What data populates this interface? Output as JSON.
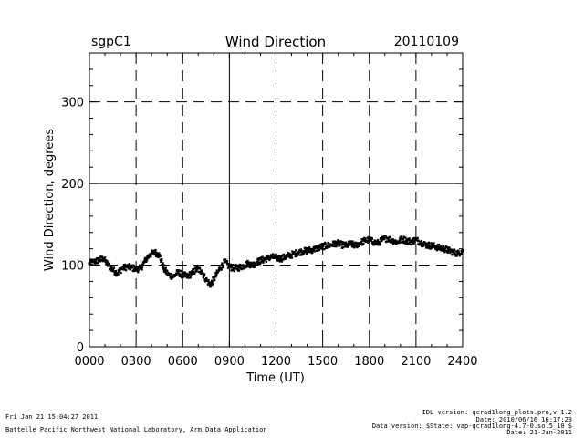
{
  "header": {
    "site": "sgpC1",
    "title": "Wind Direction",
    "date": "20110109"
  },
  "footer": {
    "left_line1": "Fri Jan 21 15:04:27 2011",
    "left_line2": "Battelle Pacific Northwest National Laboratory, Arm Data Application",
    "right_line1": "IDL version: qcrad1long_plots.pro,v 1.2",
    "right_line2": "Date: 2010/06/16 16:17:23",
    "right_line3": "Data version: $State: vap-qcrad1long-4.7-0.sol5_10 $",
    "right_line4": "Date: 21-Jan-2011"
  },
  "chart_data": {
    "type": "scatter",
    "title": "Wind Direction",
    "xlabel": "Time (UT)",
    "ylabel": "Wind Direction, degrees",
    "xlim": [
      0,
      24
    ],
    "ylim": [
      0,
      360
    ],
    "x_ticks": [
      0,
      3,
      6,
      9,
      12,
      15,
      18,
      21,
      24
    ],
    "x_tick_labels": [
      "0000",
      "0300",
      "0600",
      "0900",
      "1200",
      "1500",
      "1800",
      "2100",
      "2400"
    ],
    "y_ticks": [
      0,
      100,
      200,
      300
    ],
    "y_tick_labels": [
      "0",
      "100",
      "200",
      "300"
    ],
    "grid": {
      "vertical_dashed_hours": [
        3,
        6,
        12,
        15,
        18,
        21
      ],
      "vertical_solid_hours": [
        9
      ],
      "horizontal_dashed_values": [
        100,
        300
      ],
      "horizontal_solid_values": [
        200
      ]
    },
    "series": [
      {
        "name": "wind direction (approx. hourly trace)",
        "x": [
          0.0,
          0.3,
          0.6,
          0.9,
          1.2,
          1.5,
          1.8,
          2.1,
          2.4,
          2.7,
          3.0,
          3.3,
          3.6,
          3.9,
          4.2,
          4.5,
          4.8,
          5.1,
          5.4,
          5.7,
          6.0,
          6.3,
          6.6,
          6.9,
          7.2,
          7.5,
          7.8,
          8.1,
          8.4,
          8.7,
          9.0,
          9.3,
          9.6,
          9.9,
          10.2,
          10.5,
          10.8,
          11.1,
          11.4,
          11.7,
          12.0,
          12.3,
          12.6,
          12.9,
          13.2,
          13.5,
          13.8,
          14.1,
          14.4,
          14.7,
          15.0,
          15.3,
          15.6,
          15.9,
          16.2,
          16.5,
          16.8,
          17.1,
          17.4,
          17.7,
          18.0,
          18.3,
          18.6,
          18.9,
          19.2,
          19.5,
          19.8,
          20.1,
          20.4,
          20.7,
          21.0,
          21.3,
          21.6,
          21.9,
          22.2,
          22.5,
          22.8,
          23.1,
          23.4,
          23.7,
          24.0
        ],
        "y": [
          102,
          104,
          106,
          108,
          100,
          94,
          90,
          96,
          98,
          97,
          95,
          96,
          106,
          113,
          116,
          112,
          95,
          88,
          86,
          91,
          88,
          86,
          90,
          95,
          93,
          82,
          76,
          86,
          96,
          104,
          98,
          96,
          97,
          99,
          102,
          100,
          104,
          106,
          108,
          110,
          109,
          108,
          110,
          112,
          114,
          116,
          117,
          118,
          119,
          121,
          123,
          124,
          125,
          127,
          125,
          124,
          126,
          124,
          127,
          130,
          131,
          128,
          127,
          132,
          133,
          130,
          128,
          132,
          130,
          129,
          131,
          128,
          125,
          124,
          123,
          121,
          120,
          118,
          116,
          114,
          118
        ]
      }
    ]
  }
}
